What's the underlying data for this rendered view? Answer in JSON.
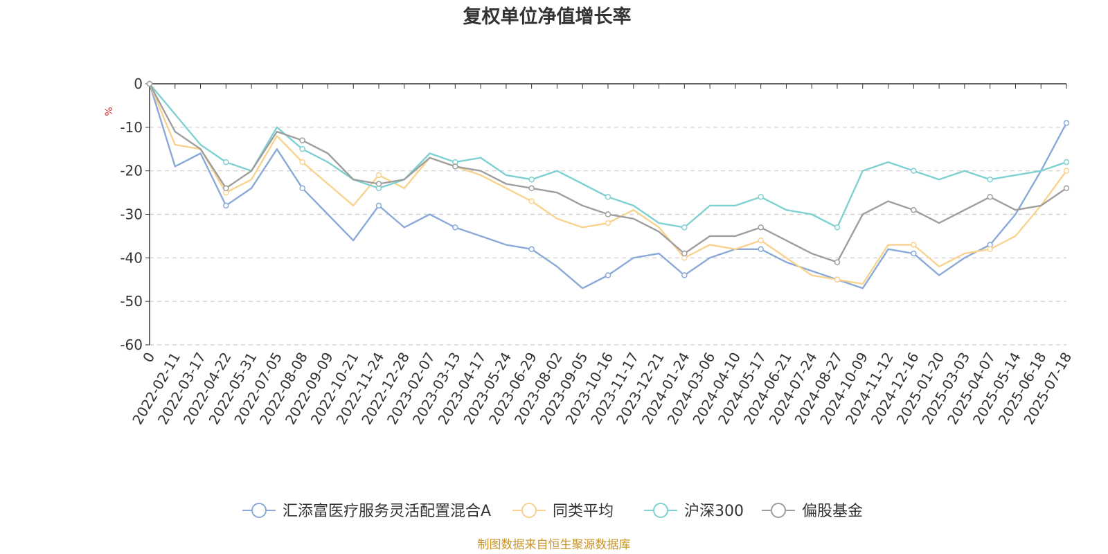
{
  "chart_data": {
    "type": "line",
    "title": "复权单位净值增长率",
    "y_unit": "%",
    "ylim": [
      -60,
      0
    ],
    "y_ticks": [
      0,
      -10,
      -20,
      -30,
      -40,
      -50,
      -60
    ],
    "grid": "horizontal dashed",
    "legend_position": "bottom",
    "x_tick_labels": [
      "0",
      "2022-02-11",
      "2022-03-17",
      "2022-04-22",
      "2022-05-31",
      "2022-07-05",
      "2022-08-08",
      "2022-09-09",
      "2022-10-21",
      "2022-11-24",
      "2022-12-28",
      "2023-02-07",
      "2023-03-13",
      "2023-04-17",
      "2023-05-24",
      "2023-06-29",
      "2023-08-02",
      "2023-09-05",
      "2023-10-16",
      "2023-11-17",
      "2023-12-21",
      "2024-01-24",
      "2024-03-06",
      "2024-04-10",
      "2024-05-17",
      "2024-06-21",
      "2024-07-24",
      "2024-08-27",
      "2024-10-09",
      "2024-11-12",
      "2024-12-16",
      "2025-01-20",
      "2025-03-03",
      "2025-04-07",
      "2025-05-14",
      "2025-06-18",
      "2025-07-18"
    ],
    "series": [
      {
        "name": "汇添富医疗服务灵活配置混合A",
        "color": "#8aa9d8",
        "values": [
          0,
          -19,
          -16,
          -28,
          -24,
          -15,
          -24,
          -30,
          -36,
          -28,
          -33,
          -30,
          -33,
          -35,
          -37,
          -38,
          -42,
          -47,
          -44,
          -40,
          -39,
          -44,
          -40,
          -38,
          -38,
          -41,
          -43,
          -45,
          -47,
          -38,
          -39,
          -44,
          -40,
          -37,
          -30,
          -20,
          -9
        ]
      },
      {
        "name": "同类平均",
        "color": "#f9d38e",
        "values": [
          0,
          -14,
          -15,
          -25,
          -22,
          -12,
          -18,
          -23,
          -28,
          -21,
          -24,
          -17,
          -19,
          -21,
          -24,
          -27,
          -31,
          -33,
          -32,
          -29,
          -33,
          -40,
          -37,
          -38,
          -36,
          -40,
          -44,
          -45,
          -46,
          -37,
          -37,
          -42,
          -39,
          -38,
          -35,
          -28,
          -20
        ]
      },
      {
        "name": "沪深300",
        "color": "#7fd0d0",
        "values": [
          0,
          -7,
          -14,
          -18,
          -20,
          -10,
          -15,
          -18,
          -22,
          -24,
          -22,
          -16,
          -18,
          -17,
          -21,
          -22,
          -20,
          -23,
          -26,
          -28,
          -32,
          -33,
          -28,
          -28,
          -26,
          -29,
          -30,
          -33,
          -20,
          -18,
          -20,
          -22,
          -20,
          -22,
          -21,
          -20,
          -18
        ]
      },
      {
        "name": "偏股基金",
        "color": "#9e9e9e",
        "values": [
          0,
          -11,
          -15,
          -24,
          -20,
          -11,
          -13,
          -16,
          -22,
          -23,
          -22,
          -17,
          -19,
          -20,
          -23,
          -24,
          -25,
          -28,
          -30,
          -31,
          -34,
          -39,
          -35,
          -35,
          -33,
          -36,
          -39,
          -41,
          -30,
          -27,
          -29,
          -32,
          -29,
          -26,
          -29,
          -28,
          -24
        ]
      }
    ],
    "source_note": "制图数据来自恒生聚源数据库"
  }
}
